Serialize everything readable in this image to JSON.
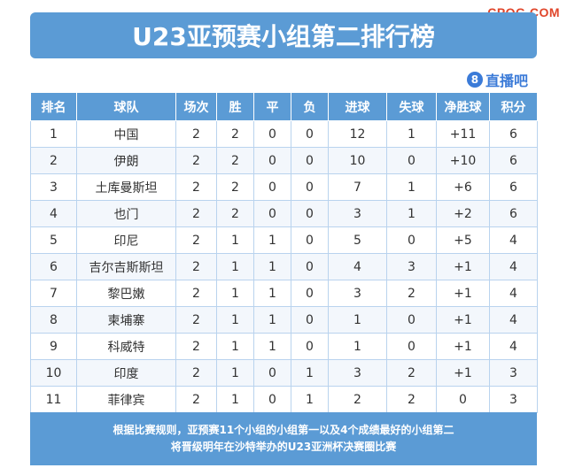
{
  "watermark": "CPQG.COM",
  "title": "U23亚预赛小组第二排行榜",
  "brand": {
    "icon_text": "8",
    "label": "直播吧"
  },
  "table": {
    "headers": [
      "排名",
      "球队",
      "场次",
      "胜",
      "平",
      "负",
      "进球",
      "失球",
      "净胜球",
      "积分"
    ],
    "rows": [
      [
        "1",
        "中国",
        "2",
        "2",
        "0",
        "0",
        "12",
        "1",
        "+11",
        "6"
      ],
      [
        "2",
        "伊朗",
        "2",
        "2",
        "0",
        "0",
        "10",
        "0",
        "+10",
        "6"
      ],
      [
        "3",
        "土库曼斯坦",
        "2",
        "2",
        "0",
        "0",
        "7",
        "1",
        "+6",
        "6"
      ],
      [
        "4",
        "也门",
        "2",
        "2",
        "0",
        "0",
        "3",
        "1",
        "+2",
        "6"
      ],
      [
        "5",
        "印尼",
        "2",
        "1",
        "1",
        "0",
        "5",
        "0",
        "+5",
        "4"
      ],
      [
        "6",
        "吉尔吉斯斯坦",
        "2",
        "1",
        "1",
        "0",
        "4",
        "3",
        "+1",
        "4"
      ],
      [
        "7",
        "黎巴嫩",
        "2",
        "1",
        "1",
        "0",
        "3",
        "2",
        "+1",
        "4"
      ],
      [
        "8",
        "柬埔寨",
        "2",
        "1",
        "1",
        "0",
        "1",
        "0",
        "+1",
        "4"
      ],
      [
        "9",
        "科威特",
        "2",
        "1",
        "1",
        "0",
        "1",
        "0",
        "+1",
        "4"
      ],
      [
        "10",
        "印度",
        "2",
        "1",
        "0",
        "1",
        "3",
        "2",
        "+1",
        "3"
      ],
      [
        "11",
        "菲律宾",
        "2",
        "1",
        "0",
        "1",
        "2",
        "2",
        "0",
        "3"
      ]
    ]
  },
  "footer": {
    "line1": "根据比赛规则，亚预赛11个小组的小组第一以及4个成绩最好的小组第二",
    "line2": "将晋级明年在沙特举办的U23亚洲杯决赛圈比赛"
  }
}
